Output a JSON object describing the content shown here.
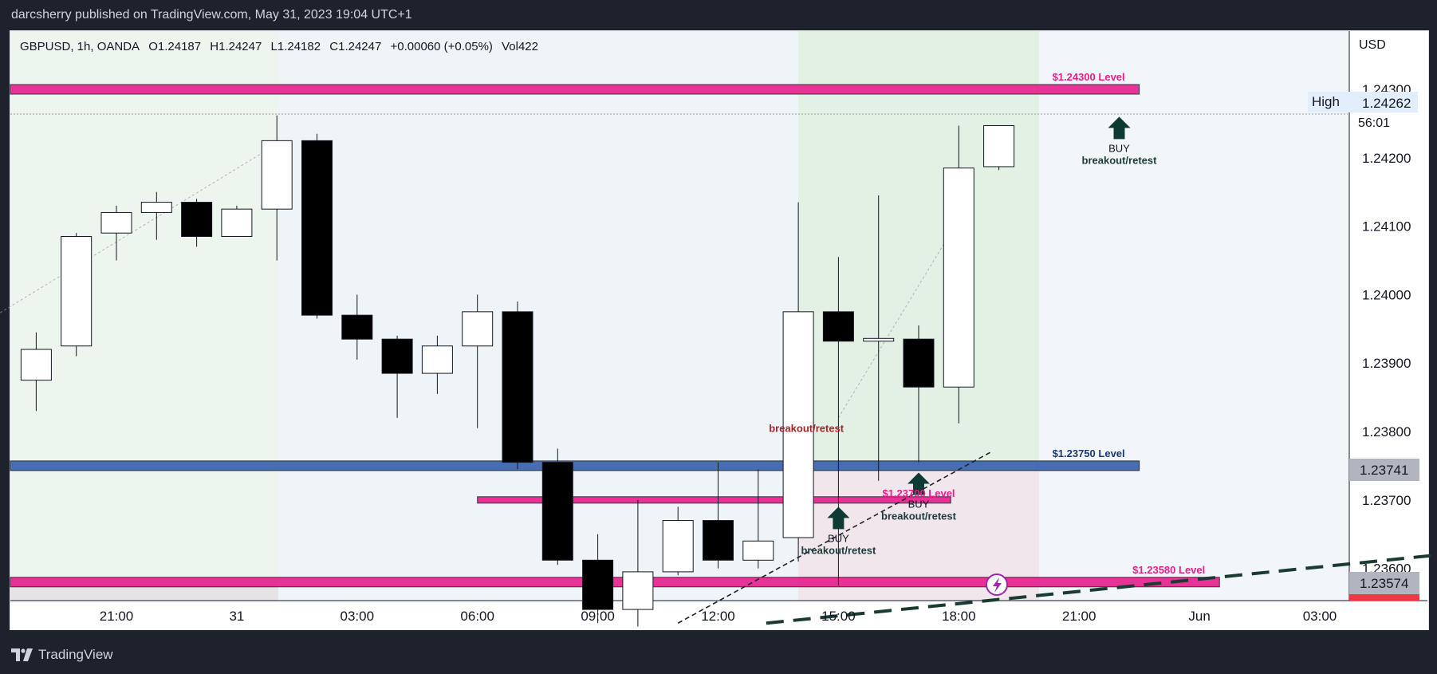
{
  "header": {
    "publisher": "darcsherry published on TradingView.com, May 31, 2023 19:04 UTC+1"
  },
  "legend": {
    "symbol": "GBPUSD, 1h, OANDA",
    "open": "O1.24187",
    "high": "H1.24247",
    "low": "L1.24182",
    "close": "C1.24247",
    "change": "+0.00060 (+0.05%)",
    "volume": "Vol422"
  },
  "price_axis": {
    "currency_label": "USD",
    "high_label": "High",
    "high_value": "1.24262",
    "countdown": "56:01",
    "level_tag_1": "1.23741",
    "level_tag_2": "1.23574"
  },
  "footer": {
    "brand": "TradingView"
  },
  "colors": {
    "bull_body": "#ffffff",
    "bear_body": "#000000",
    "pink_level": "#e91e8c",
    "blue_level": "#3f66b0",
    "label_pink": "#e91e8c",
    "label_navy": "#1c3a6e",
    "label_red": "#a0262c",
    "arrow": "#0d3a33"
  },
  "chart_data": {
    "type": "candlestick",
    "symbol": "GBPUSD",
    "timeframe": "1h",
    "ylim": [
      1.2352,
      1.2442
    ],
    "y_ticks": [
      "1.24300",
      "1.24200",
      "1.24100",
      "1.24000",
      "1.23900",
      "1.23800",
      "1.23700",
      "1.23600"
    ],
    "x_ticks": [
      {
        "label": "21:00",
        "hour": 0
      },
      {
        "label": "31",
        "hour": 3
      },
      {
        "label": "03:00",
        "hour": 6
      },
      {
        "label": "06:00",
        "hour": 9
      },
      {
        "label": "09:00",
        "hour": 12
      },
      {
        "label": "12:00",
        "hour": 15
      },
      {
        "label": "15:00",
        "hour": 18
      },
      {
        "label": "18:00",
        "hour": 21
      },
      {
        "label": "21:00",
        "hour": 24
      },
      {
        "label": "Jun",
        "hour": 27
      },
      {
        "label": "03:00",
        "hour": 30
      }
    ],
    "candles": [
      {
        "t": -2,
        "o": 1.23875,
        "h": 1.23945,
        "l": 1.2383,
        "c": 1.2392
      },
      {
        "t": -1,
        "o": 1.23925,
        "h": 1.2409,
        "l": 1.2391,
        "c": 1.24085
      },
      {
        "t": 0,
        "o": 1.2409,
        "h": 1.2413,
        "l": 1.2405,
        "c": 1.2412
      },
      {
        "t": 1,
        "o": 1.2412,
        "h": 1.2415,
        "l": 1.2408,
        "c": 1.24135
      },
      {
        "t": 2,
        "o": 1.24135,
        "h": 1.2414,
        "l": 1.2407,
        "c": 1.24085
      },
      {
        "t": 3,
        "o": 1.24085,
        "h": 1.2413,
        "l": 1.24085,
        "c": 1.24125
      },
      {
        "t": 4,
        "o": 1.24125,
        "h": 1.24262,
        "l": 1.2405,
        "c": 1.24225
      },
      {
        "t": 5,
        "o": 1.24225,
        "h": 1.24235,
        "l": 1.23965,
        "c": 1.2397
      },
      {
        "t": 6,
        "o": 1.2397,
        "h": 1.24,
        "l": 1.23905,
        "c": 1.23935
      },
      {
        "t": 7,
        "o": 1.23935,
        "h": 1.2394,
        "l": 1.2382,
        "c": 1.23885
      },
      {
        "t": 8,
        "o": 1.23885,
        "h": 1.2394,
        "l": 1.23855,
        "c": 1.23925
      },
      {
        "t": 9,
        "o": 1.23925,
        "h": 1.24,
        "l": 1.23805,
        "c": 1.23975
      },
      {
        "t": 10,
        "o": 1.23975,
        "h": 1.2399,
        "l": 1.23745,
        "c": 1.23755
      },
      {
        "t": 11,
        "o": 1.23755,
        "h": 1.23775,
        "l": 1.23605,
        "c": 1.23612
      },
      {
        "t": 12,
        "o": 1.23612,
        "h": 1.2365,
        "l": 1.2352,
        "c": 1.2354
      },
      {
        "t": 13,
        "o": 1.2354,
        "h": 1.237,
        "l": 1.23515,
        "c": 1.23595
      },
      {
        "t": 14,
        "o": 1.23595,
        "h": 1.2369,
        "l": 1.2359,
        "c": 1.2367
      },
      {
        "t": 15,
        "o": 1.2367,
        "h": 1.23755,
        "l": 1.236,
        "c": 1.23612
      },
      {
        "t": 16,
        "o": 1.23612,
        "h": 1.23745,
        "l": 1.236,
        "c": 1.2364
      },
      {
        "t": 17,
        "o": 1.23645,
        "h": 1.24135,
        "l": 1.2361,
        "c": 1.23975
      },
      {
        "t": 18,
        "o": 1.23975,
        "h": 1.24055,
        "l": 1.23575,
        "c": 1.23932
      },
      {
        "t": 19,
        "o": 1.23932,
        "h": 1.24145,
        "l": 1.23728,
        "c": 1.23936
      },
      {
        "t": 20,
        "o": 1.23935,
        "h": 1.23955,
        "l": 1.23755,
        "c": 1.23865
      },
      {
        "t": 21,
        "o": 1.23865,
        "h": 1.24247,
        "l": 1.23812,
        "c": 1.24185
      },
      {
        "t": 22,
        "o": 1.24187,
        "h": 1.24247,
        "l": 1.24182,
        "c": 1.24247
      }
    ],
    "levels": [
      {
        "label": "$1.24300 Level",
        "price": 1.243,
        "color": "pink",
        "from": -3,
        "to": 25.5
      },
      {
        "label": "$1.23750 Level",
        "price": 1.2375,
        "color": "blue",
        "from": -3,
        "to": 25.5
      },
      {
        "label": "$1.23580 Level",
        "price": 1.2358,
        "color": "pink",
        "from": -3,
        "to": 27.5
      },
      {
        "label": "",
        "price": 1.237,
        "color": "pink",
        "from": 9,
        "to": 20.8
      }
    ],
    "annotations": [
      {
        "text": "BUY",
        "sub": "breakout/retest",
        "t": 25,
        "price": 1.2426
      },
      {
        "text": "BUY",
        "sub": "breakout/retest",
        "t": 18,
        "price": 1.2369
      },
      {
        "text": "BUY",
        "sub": "breakout/retest",
        "t": 20,
        "price": 1.2374
      },
      {
        "text": "$1.23700 Level",
        "t": 20,
        "price": 1.2371
      },
      {
        "text": "breakout/retest",
        "t": 17.2,
        "price": 1.23805
      }
    ]
  }
}
